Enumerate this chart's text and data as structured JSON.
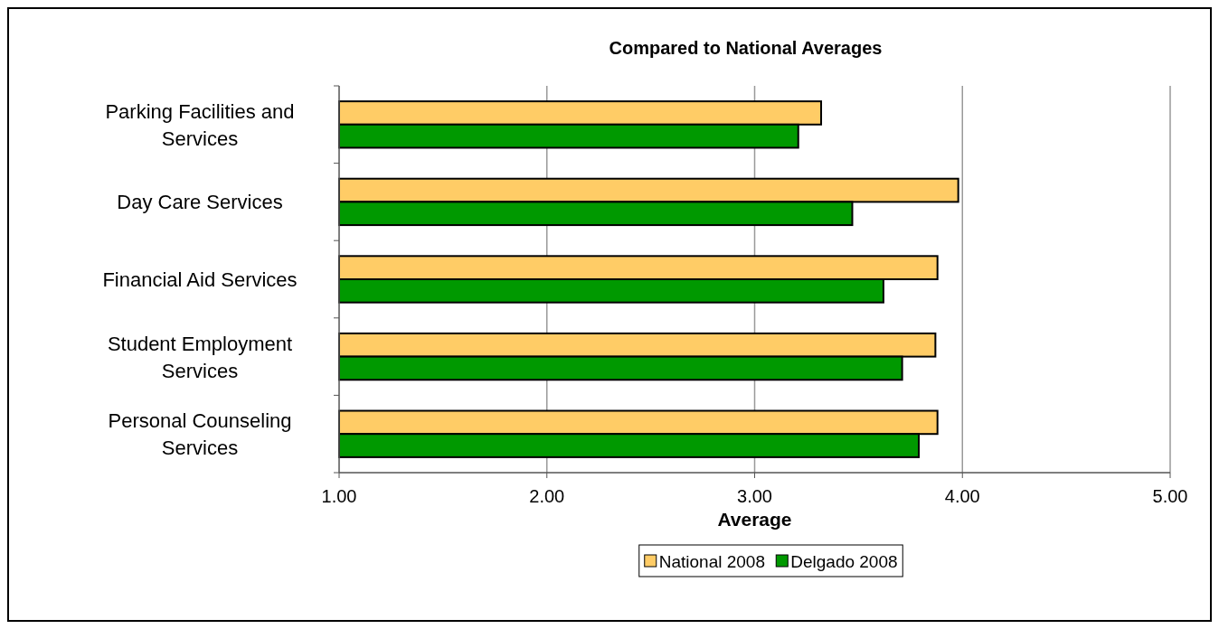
{
  "chart_data": {
    "type": "bar",
    "orientation": "horizontal",
    "title": "Compared to National Averages",
    "xlabel": "Average",
    "categories": [
      "Parking Facilities and Services",
      "Day Care Services",
      "Financial Aid Services",
      "Student Employment Services",
      "Personal Counseling Services"
    ],
    "series": [
      {
        "name": "National 2008",
        "color": "#ffcc66",
        "values": [
          3.32,
          3.98,
          3.88,
          3.87,
          3.88
        ]
      },
      {
        "name": "Delgado 2008",
        "color": "#009900",
        "values": [
          3.21,
          3.47,
          3.62,
          3.71,
          3.79
        ]
      }
    ],
    "xlim": [
      1,
      5
    ],
    "xticks": [
      {
        "value": 1,
        "label": "1.00"
      },
      {
        "value": 2,
        "label": "2.00"
      },
      {
        "value": 3,
        "label": "3.00"
      },
      {
        "value": 4,
        "label": "4.00"
      },
      {
        "value": 5,
        "label": "5.00"
      }
    ],
    "grid": "x",
    "legend": "bottom"
  }
}
